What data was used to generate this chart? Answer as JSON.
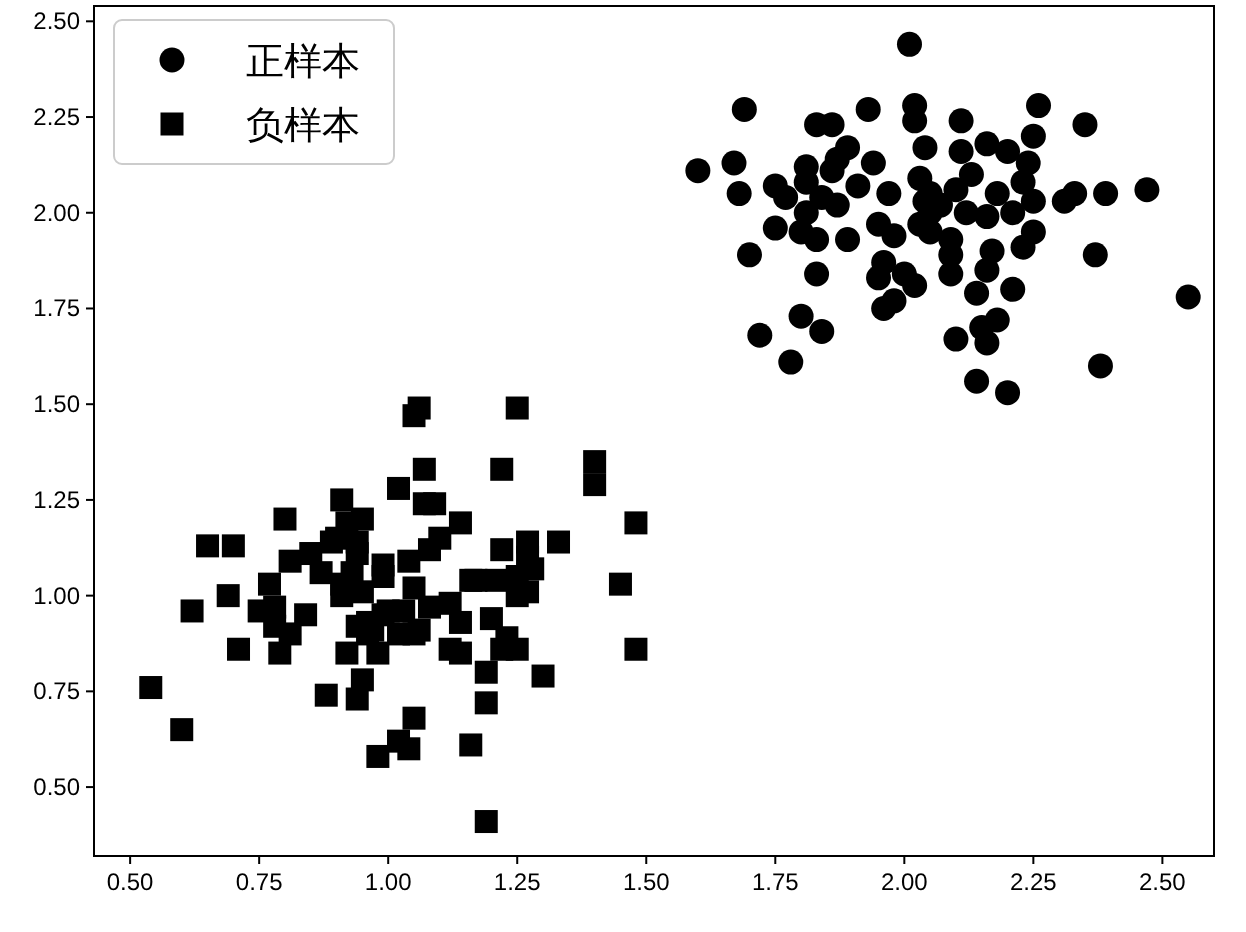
{
  "chart_data": {
    "type": "scatter",
    "xlim": [
      0.43,
      2.6
    ],
    "ylim": [
      0.32,
      2.54
    ],
    "xticks": [
      {
        "value": 0.5,
        "label": "0.50"
      },
      0.75,
      {
        "value": 1.0,
        "label": "1.00"
      },
      1.25,
      {
        "value": 1.5,
        "label": "1.50"
      },
      1.75,
      {
        "value": 2.0,
        "label": "2.00"
      },
      2.25,
      {
        "value": 2.5,
        "label": "2.50"
      }
    ],
    "yticks": [
      {
        "value": 0.5,
        "label": "0.50"
      },
      0.75,
      {
        "value": 1.0,
        "label": "1.00"
      },
      1.25,
      {
        "value": 1.5,
        "label": "1.50"
      },
      1.75,
      {
        "value": 2.0,
        "label": "2.00"
      },
      2.25,
      {
        "value": 2.5,
        "label": "2.50"
      }
    ],
    "legend": "top left",
    "series": [
      {
        "name": "正样本",
        "color": "#000000",
        "marker": "circle",
        "x": [
          2.01,
          1.69,
          1.93,
          2.02,
          2.02,
          1.83,
          1.86,
          1.89,
          1.87,
          2.04,
          1.6,
          1.67,
          1.68,
          1.81,
          1.94,
          1.86,
          1.75,
          1.77,
          1.81,
          1.84,
          1.87,
          1.91,
          1.97,
          2.03,
          2.05,
          1.81,
          1.75,
          1.8,
          1.83,
          1.89,
          1.95,
          1.98,
          2.03,
          2.05,
          1.7,
          1.83,
          1.96,
          1.95,
          2.0,
          2.02,
          1.98,
          1.96,
          1.8,
          1.72,
          1.84,
          1.78,
          2.26,
          2.35,
          2.11,
          2.25,
          2.11,
          2.16,
          2.2,
          2.24,
          2.13,
          2.23,
          2.18,
          2.25,
          2.31,
          2.33,
          2.39,
          2.47,
          2.1,
          2.12,
          2.16,
          2.21,
          2.25,
          2.23,
          2.09,
          2.09,
          2.17,
          2.09,
          2.16,
          2.37,
          2.14,
          2.21,
          2.55,
          2.18,
          2.15,
          2.1,
          2.16,
          2.38,
          2.14,
          2.2,
          2.07,
          2.05,
          2.04
        ],
        "values": [
          2.44,
          2.27,
          2.27,
          2.28,
          2.24,
          2.23,
          2.23,
          2.17,
          2.14,
          2.17,
          2.11,
          2.13,
          2.05,
          2.12,
          2.13,
          2.11,
          2.07,
          2.04,
          2.08,
          2.04,
          2.02,
          2.07,
          2.05,
          2.09,
          2.05,
          2.0,
          1.96,
          1.95,
          1.93,
          1.93,
          1.97,
          1.94,
          1.97,
          1.95,
          1.89,
          1.84,
          1.87,
          1.83,
          1.84,
          1.81,
          1.77,
          1.75,
          1.73,
          1.68,
          1.69,
          1.61,
          2.28,
          2.23,
          2.24,
          2.2,
          2.16,
          2.18,
          2.16,
          2.13,
          2.1,
          2.08,
          2.05,
          2.03,
          2.03,
          2.05,
          2.05,
          2.06,
          2.06,
          2.0,
          1.99,
          2.0,
          1.95,
          1.91,
          1.93,
          1.89,
          1.9,
          1.84,
          1.85,
          1.89,
          1.79,
          1.8,
          1.78,
          1.72,
          1.7,
          1.67,
          1.66,
          1.6,
          1.56,
          1.53,
          2.02,
          2.0,
          2.03
        ]
      },
      {
        "name": "负样本",
        "color": "#000000",
        "marker": "square",
        "x": [
          0.8,
          0.91,
          0.65,
          0.7,
          0.81,
          0.85,
          0.89,
          0.92,
          0.87,
          0.77,
          0.69,
          0.62,
          0.75,
          0.78,
          0.84,
          0.78,
          0.81,
          0.91,
          0.71,
          0.79,
          0.92,
          0.54,
          0.88,
          0.6,
          1.06,
          1.05,
          1.07,
          1.02,
          0.95,
          1.07,
          1.09,
          1.14,
          1.1,
          1.08,
          1.04,
          0.9,
          0.94,
          0.94,
          0.99,
          0.93,
          0.91,
          0.95,
          0.99,
          1.05,
          1.16,
          1.0,
          1.03,
          1.08,
          1.12,
          1.14,
          0.94,
          0.97,
          1.05,
          0.98,
          1.12,
          1.14,
          1.19,
          0.95,
          0.94,
          1.05,
          1.02,
          1.04,
          0.98,
          1.16,
          1.19,
          1.19,
          1.25,
          1.22,
          1.4,
          1.4,
          1.48,
          1.22,
          1.27,
          1.33,
          1.27,
          1.28,
          1.17,
          1.21,
          1.25,
          1.27,
          1.25,
          1.45,
          1.2,
          1.23,
          1.22,
          1.25,
          1.48,
          1.3,
          0.96,
          0.99,
          1.06,
          0.96,
          1.02
        ],
        "values": [
          1.2,
          1.25,
          1.13,
          1.13,
          1.09,
          1.11,
          1.14,
          1.19,
          1.06,
          1.03,
          1.0,
          0.96,
          0.96,
          0.97,
          0.95,
          0.92,
          0.9,
          1.0,
          0.86,
          0.85,
          0.85,
          0.76,
          0.74,
          0.65,
          1.49,
          1.47,
          1.33,
          1.28,
          1.2,
          1.24,
          1.24,
          1.19,
          1.15,
          1.12,
          1.09,
          1.15,
          1.14,
          1.11,
          1.08,
          1.06,
          1.03,
          1.01,
          1.05,
          1.02,
          1.04,
          0.96,
          0.96,
          0.97,
          0.98,
          0.93,
          0.92,
          0.91,
          0.9,
          0.85,
          0.86,
          0.85,
          0.8,
          0.78,
          0.73,
          0.68,
          0.62,
          0.6,
          0.58,
          0.61,
          0.72,
          0.41,
          1.49,
          1.33,
          1.35,
          1.29,
          1.19,
          1.12,
          1.14,
          1.14,
          1.1,
          1.07,
          1.04,
          1.04,
          1.05,
          1.01,
          1.0,
          1.03,
          0.94,
          0.89,
          0.86,
          0.86,
          0.86,
          0.79,
          0.93,
          0.95,
          0.91,
          0.9,
          0.9
        ]
      }
    ]
  }
}
